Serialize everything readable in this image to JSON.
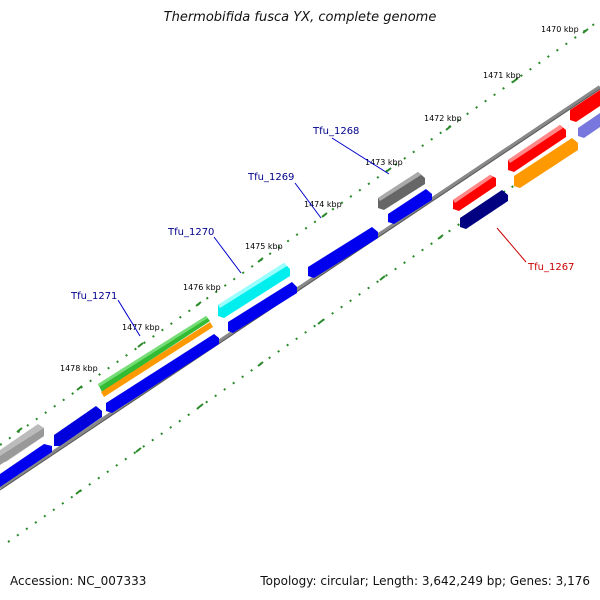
{
  "title": "Thermobifida fusca YX, complete genome",
  "footer": {
    "accession": "Accession: NC_007333",
    "summary": "Topology: circular; Length: 3,642,249 bp; Genes: 3,176"
  },
  "ticks": [
    {
      "label": "1470 kbp"
    },
    {
      "label": "1471 kbp"
    },
    {
      "label": "1472 kbp"
    },
    {
      "label": "1473 kbp"
    },
    {
      "label": "1474 kbp"
    },
    {
      "label": "1475 kbp"
    },
    {
      "label": "1476 kbp"
    },
    {
      "label": "1477 kbp"
    },
    {
      "label": "1478 kbp"
    }
  ],
  "gene_labels": [
    {
      "label": "Tfu_1267",
      "color": "#cc0000"
    },
    {
      "label": "Tfu_1268",
      "color": "#00008b"
    },
    {
      "label": "Tfu_1269",
      "color": "#00008b"
    },
    {
      "label": "Tfu_1270",
      "color": "#00008b"
    },
    {
      "label": "Tfu_1271",
      "color": "#00008b"
    }
  ],
  "colors": {
    "cds_forward": "#0000ee",
    "cds_reverse": "#000080",
    "rrna": "#ff0000",
    "orange_feature": "#ff9900",
    "green_feature": "#33bb33",
    "cyan_feature": "#00eeee",
    "gray_feature": "#777777",
    "backbone": "#888888",
    "tick_green": "#2a8a2a"
  }
}
